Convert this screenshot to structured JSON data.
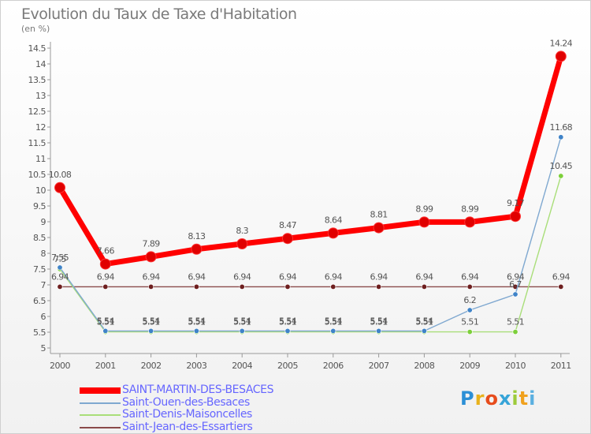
{
  "header": {
    "title": "Evolution du Taux de Taxe d'Habitation",
    "unit": "(en %)"
  },
  "brand": {
    "logo_text": "Proxiti",
    "colors": [
      "#2b8fd6",
      "#e8b21c",
      "#e74c1c",
      "#36a4d8",
      "#9ccb3b",
      "#f0a11e",
      "#5bb0e0"
    ]
  },
  "chart_data": {
    "type": "line",
    "title": "Evolution du Taux de Taxe d'Habitation",
    "ylabel": "(en %)",
    "xlabel": "",
    "x": [
      "2000",
      "2001",
      "2002",
      "2003",
      "2004",
      "2005",
      "2006",
      "2007",
      "2008",
      "2009",
      "2010",
      "2011"
    ],
    "ylim": [
      5,
      14.5
    ],
    "yticks": [
      "5",
      "5.5",
      "6",
      "6.5",
      "7",
      "7.5",
      "8",
      "8.5",
      "9",
      "9.5",
      "10",
      "10.5",
      "11",
      "11.5",
      "12",
      "12.5",
      "13",
      "13.5",
      "14",
      "14.5"
    ],
    "grid": false,
    "legend": "bottom-left",
    "series": [
      {
        "name": "SAINT-MARTIN-DES-BESACES",
        "color": "#ff0000",
        "marker_color": "#e00000",
        "values": [
          10.08,
          7.66,
          7.89,
          8.13,
          8.3,
          8.47,
          8.64,
          8.81,
          8.99,
          8.99,
          9.17,
          14.24
        ],
        "labels": [
          "10.08",
          "7.66",
          "7.89",
          "8.13",
          "8.3",
          "8.47",
          "8.64",
          "8.81",
          "8.99",
          "8.99",
          "9.17",
          "14.24"
        ]
      },
      {
        "name": "Saint-Ouen-des-Besaces",
        "color": "#7fa8d0",
        "marker_color": "#3f83c8",
        "values": [
          7.55,
          5.54,
          5.54,
          5.54,
          5.54,
          5.54,
          5.54,
          5.54,
          5.54,
          6.2,
          6.7,
          11.68
        ],
        "labels": [
          "7.55",
          "5.54",
          "5.54",
          "5.54",
          "5.54",
          "5.54",
          "5.54",
          "5.54",
          "5.54",
          "6.2",
          "6.7",
          "11.68"
        ]
      },
      {
        "name": "Saint-Denis-Maisoncelles",
        "color": "#a9de79",
        "marker_color": "#7ccf3a",
        "values": [
          7.5,
          5.51,
          5.51,
          5.51,
          5.51,
          5.51,
          5.51,
          5.51,
          5.51,
          5.51,
          5.51,
          10.45
        ],
        "labels": [
          "7.5",
          "5.51",
          "5.51",
          "5.51",
          "5.51",
          "5.51",
          "5.51",
          "5.51",
          "5.51",
          "5.51",
          "5.51",
          "10.45"
        ]
      },
      {
        "name": "Saint-Jean-des-Essartiers",
        "color": "#8a4a4a",
        "marker_color": "#6e1f1f",
        "values": [
          6.94,
          6.94,
          6.94,
          6.94,
          6.94,
          6.94,
          6.94,
          6.94,
          6.94,
          6.94,
          6.94,
          6.94
        ],
        "labels": [
          "6.94",
          "6.94",
          "6.94",
          "6.94",
          "6.94",
          "6.94",
          "6.94",
          "6.94",
          "6.94",
          "6.94",
          "6.94",
          "6.94"
        ]
      }
    ]
  }
}
